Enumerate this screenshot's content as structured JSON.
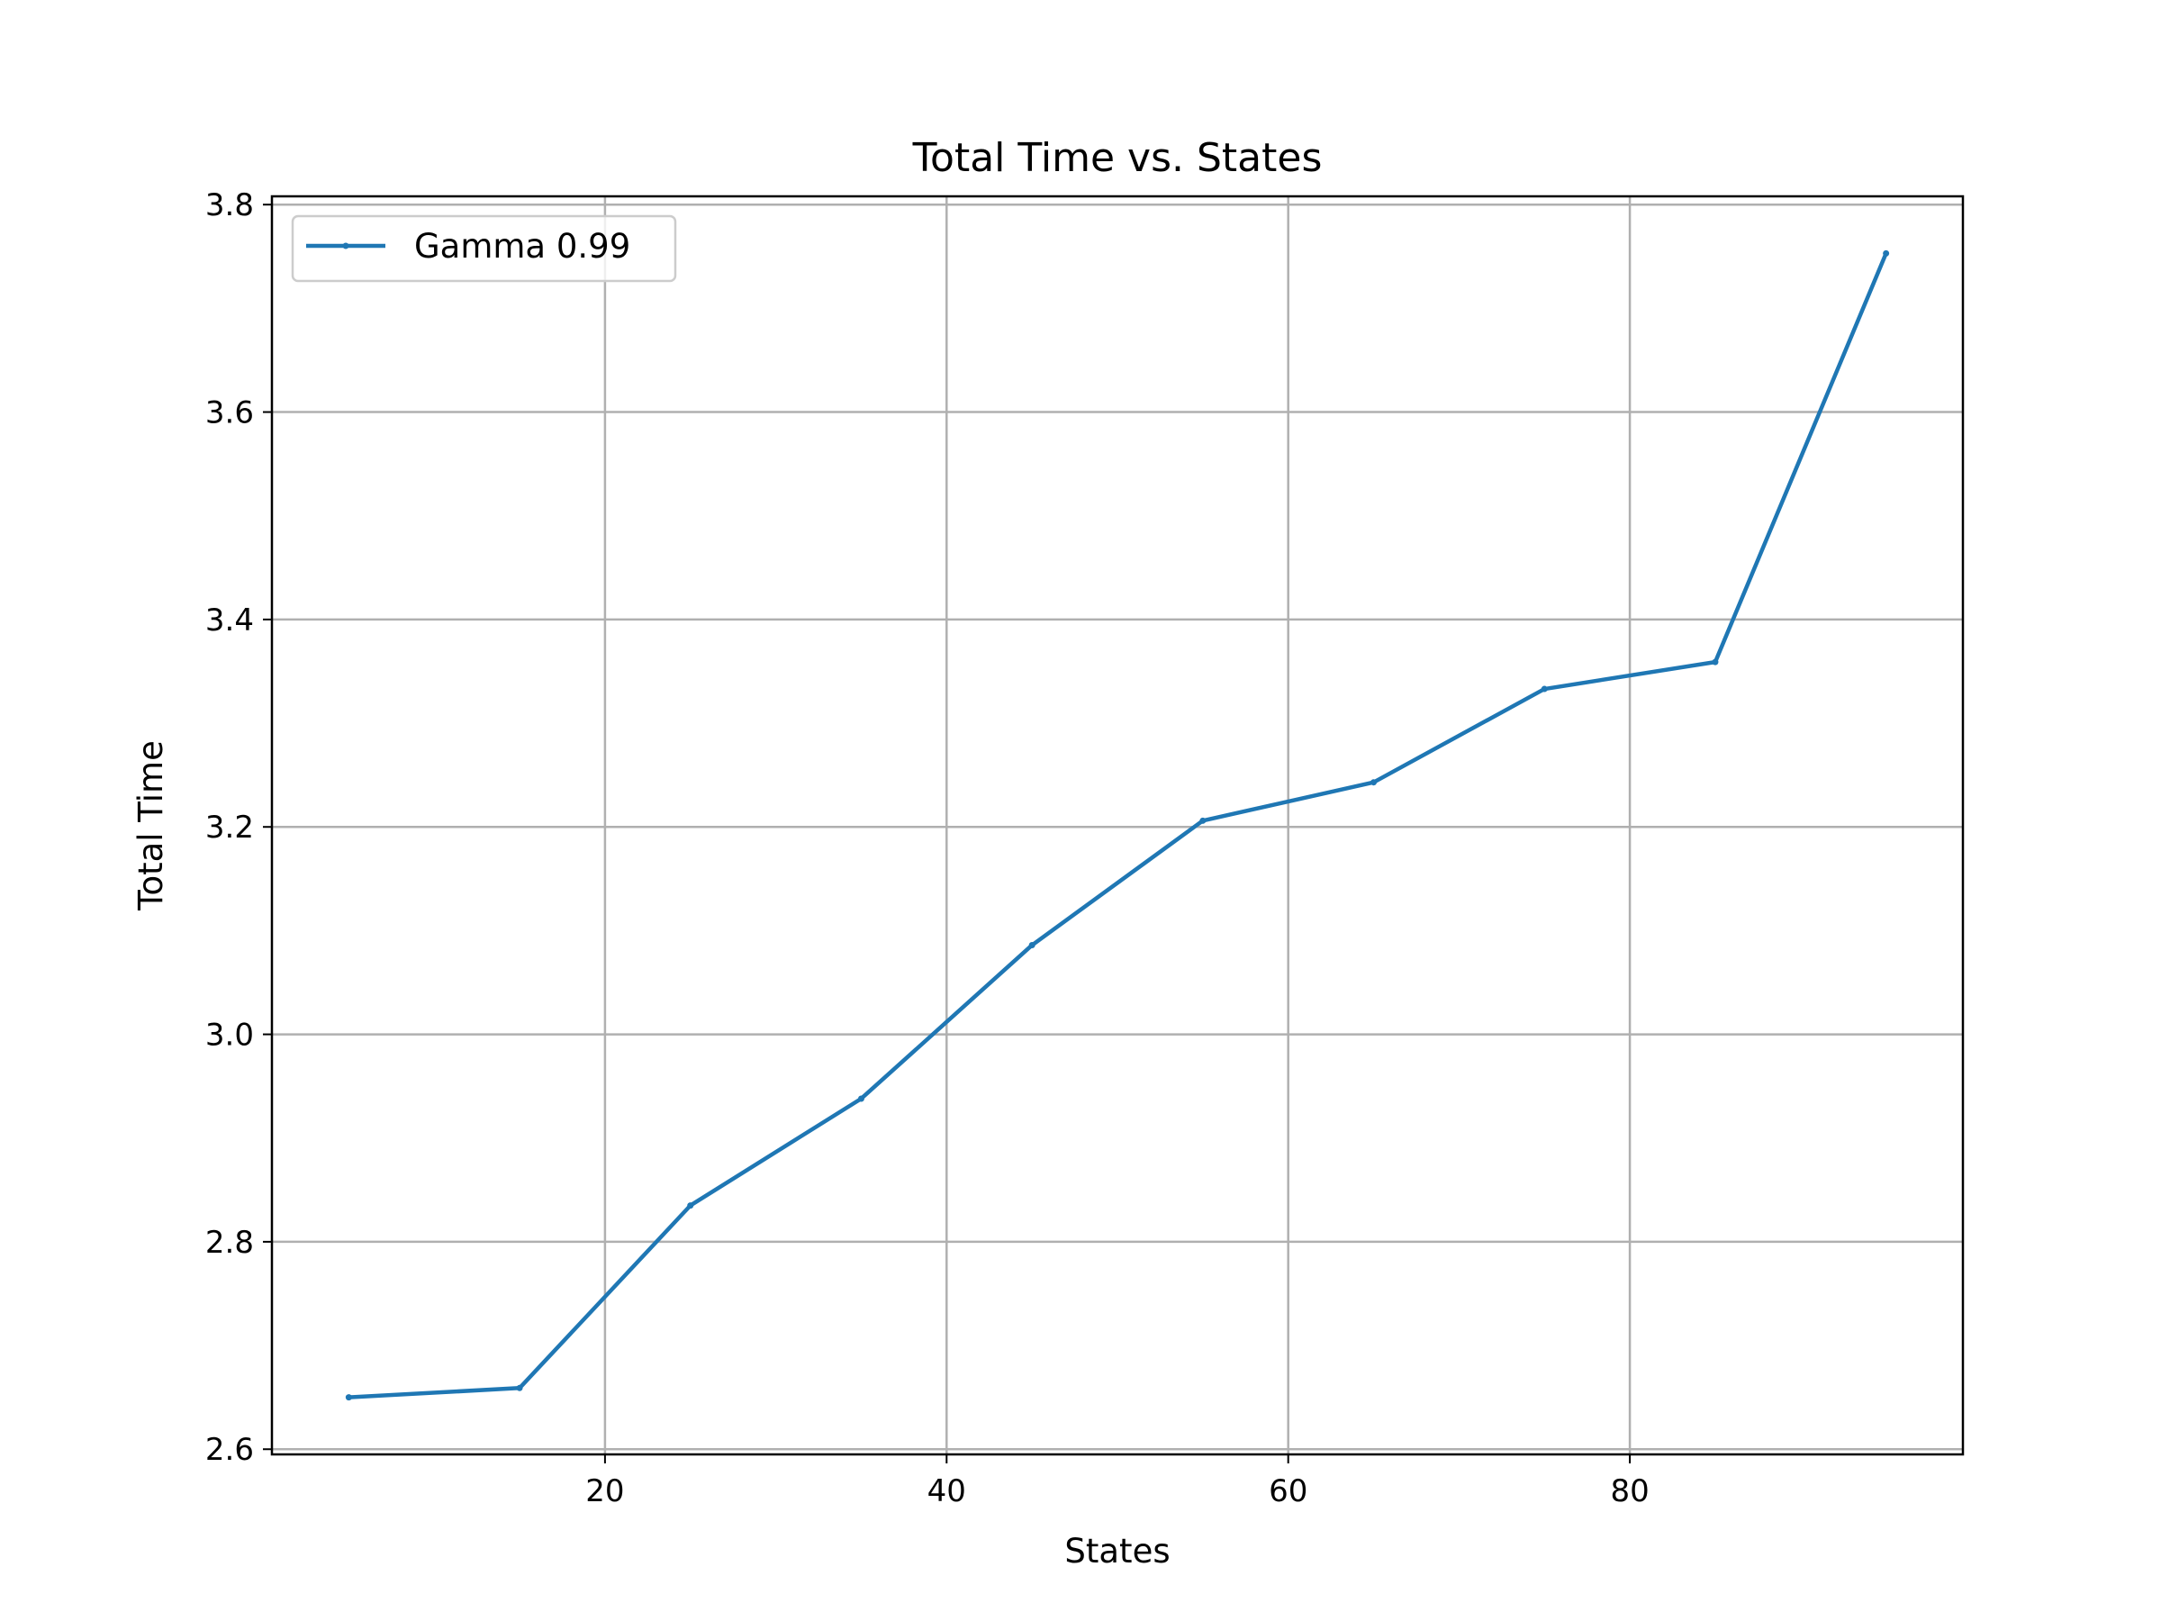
{
  "chart_data": {
    "type": "line",
    "title": "Total Time vs. States",
    "xlabel": "States",
    "ylabel": "Total Time",
    "xlim": [
      0.5,
      99.5
    ],
    "ylim": [
      2.595,
      3.808
    ],
    "xticks": [
      20,
      40,
      60,
      80
    ],
    "yticks": [
      2.6,
      2.8,
      3.0,
      3.2,
      3.4,
      3.6,
      3.8
    ],
    "grid": true,
    "legend_position": "top-left",
    "series": [
      {
        "name": "Gamma 0.99",
        "color": "#1f77b4",
        "marker": "point",
        "x": [
          5,
          15,
          25,
          35,
          45,
          55,
          65,
          75,
          85,
          95
        ],
        "y": [
          2.65,
          2.659,
          2.835,
          2.938,
          3.086,
          3.206,
          3.243,
          3.333,
          3.359,
          3.753
        ]
      }
    ]
  }
}
